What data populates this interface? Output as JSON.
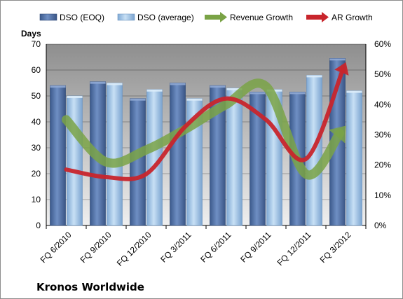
{
  "chart_data": {
    "type": "bar",
    "company": "Kronos Worldwide",
    "ylabel": "Days",
    "ylim": [
      0,
      70
    ],
    "y_ticks": [
      "0",
      "10",
      "20",
      "30",
      "40",
      "50",
      "60",
      "70"
    ],
    "y2lim": [
      0,
      60
    ],
    "y2_ticks": [
      "0%",
      "10%",
      "20%",
      "30%",
      "40%",
      "50%",
      "60%"
    ],
    "categories": [
      "FQ 6/2010",
      "FQ 9/2010",
      "FQ 12/2010",
      "FQ 3/2011",
      "FQ 6/2011",
      "FQ 9/2011",
      "FQ 12/2011",
      "FQ 3/2012"
    ],
    "bar_series": [
      {
        "name": "DSO (EOQ)",
        "values": [
          54,
          55.5,
          49,
          55,
          54,
          51.5,
          51.5,
          64.5
        ]
      },
      {
        "name": "DSO (average)",
        "values": [
          50,
          55,
          52.5,
          49,
          53,
          52.5,
          58,
          52
        ]
      }
    ],
    "line_series": [
      {
        "name": "Revenue Growth",
        "axis": "right",
        "values": [
          35,
          21,
          25,
          32,
          40,
          46,
          17,
          33
        ]
      },
      {
        "name": "AR Growth",
        "axis": "right",
        "values": [
          18.5,
          16,
          17,
          33,
          42,
          35,
          22,
          54
        ]
      }
    ],
    "grid": "horizontal",
    "legend_position": "top",
    "colors": {
      "dso_eoq": "#4a6a9e",
      "dso_avg": "#9ec4e6",
      "revenue_growth": "#7aa346",
      "ar_growth": "#c8252c",
      "plot_bg_top": "#8e8e8e",
      "plot_bg_bottom": "#ededed"
    }
  }
}
